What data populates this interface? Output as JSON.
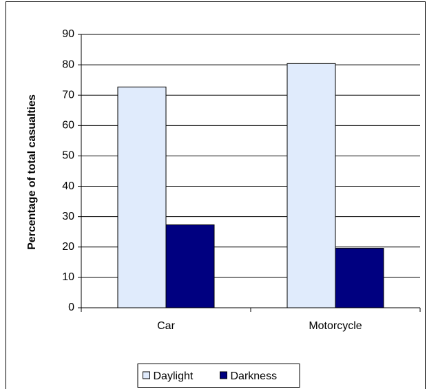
{
  "chart_data": {
    "type": "bar",
    "y_label": "Percentage of total casualties",
    "categories": [
      "Car",
      "Motorcycle"
    ],
    "series": [
      {
        "name": "Daylight",
        "color": "#e0ebfc",
        "values": [
          72.7,
          80.4
        ]
      },
      {
        "name": "Darkness",
        "color": "#000080",
        "values": [
          27.3,
          19.6
        ]
      }
    ],
    "ylim": [
      0,
      90
    ],
    "yticks": [
      0,
      10,
      20,
      30,
      40,
      50,
      60,
      70,
      80,
      90
    ],
    "grid": true,
    "legend": "bottom"
  }
}
